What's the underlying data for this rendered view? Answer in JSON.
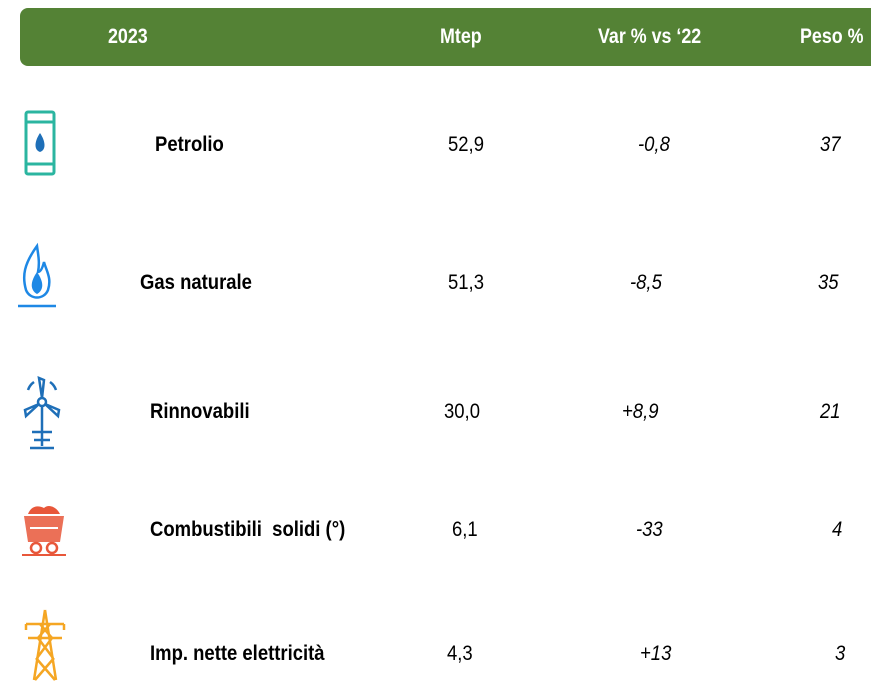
{
  "table": {
    "header": [
      "2023",
      "Mtep",
      "Var % vs ‘22",
      "Peso %"
    ],
    "rows": [
      [
        "Petrolio",
        "52,9",
        "-0,8",
        "37"
      ],
      [
        "Gas naturale",
        "51,3",
        "-8,5",
        "35"
      ],
      [
        "Rinnovabili",
        "30,0",
        "+8,9",
        "21"
      ],
      [
        "Combustibili  solidi (°)",
        "6,1",
        "-33",
        "4"
      ],
      [
        "Imp. nette elettricità",
        "4,3",
        "+13",
        "3"
      ]
    ]
  }
}
